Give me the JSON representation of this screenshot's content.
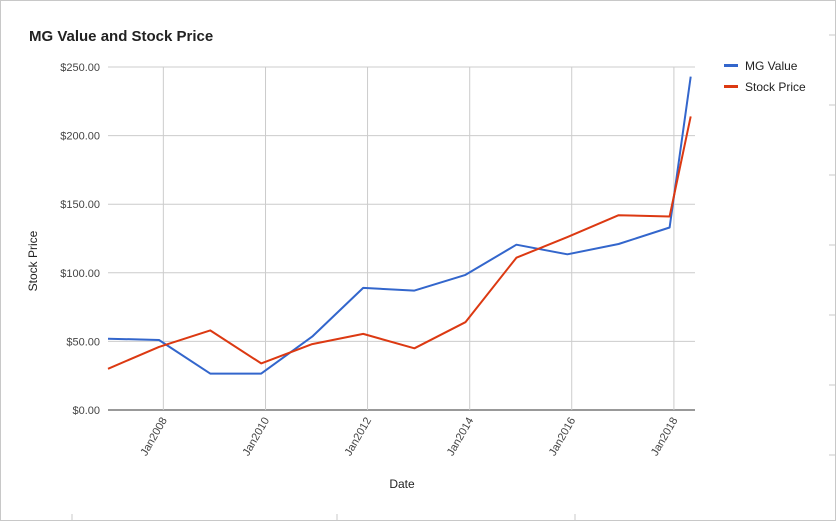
{
  "chart_data": {
    "type": "line",
    "title": "MG Value and Stock Price",
    "xlabel": "Date",
    "ylabel": "Stock Price",
    "ylim": [
      0,
      250
    ],
    "xlim": [
      "2006-12-01",
      "2018-06-01"
    ],
    "y_ticks": [
      "$0.00",
      "$50.00",
      "$100.00",
      "$150.00",
      "$200.00",
      "$250.00"
    ],
    "y_tick_values": [
      0,
      50,
      100,
      150,
      200,
      250
    ],
    "x_ticks": [
      "Jan2008",
      "Jan2010",
      "Jan2012",
      "Jan2014",
      "Jan2016",
      "Jan2018"
    ],
    "x_tick_dates": [
      "2008-01-01",
      "2010-01-01",
      "2012-01-01",
      "2014-01-01",
      "2016-01-01",
      "2018-01-01"
    ],
    "grid": true,
    "legend_position": "right",
    "series": [
      {
        "name": "MG Value",
        "color": "#3366cc",
        "x": [
          "2006-12-01",
          "2007-12-01",
          "2008-12-01",
          "2009-12-01",
          "2010-12-01",
          "2011-12-01",
          "2012-12-01",
          "2013-12-01",
          "2014-12-01",
          "2015-12-01",
          "2016-12-01",
          "2017-12-01",
          "2018-05-01"
        ],
        "values": [
          52,
          51,
          26.5,
          26.5,
          53.5,
          89,
          87,
          98.5,
          120.5,
          113.5,
          121,
          133,
          243
        ]
      },
      {
        "name": "Stock Price",
        "color": "#dc3912",
        "x": [
          "2006-12-01",
          "2007-12-01",
          "2008-12-01",
          "2009-12-01",
          "2010-12-01",
          "2011-12-01",
          "2012-12-01",
          "2013-12-01",
          "2014-12-01",
          "2015-12-01",
          "2016-12-01",
          "2017-12-01",
          "2018-05-01"
        ],
        "values": [
          30,
          46,
          58,
          34,
          48,
          55.5,
          45,
          64,
          111,
          126,
          142,
          141,
          214
        ]
      }
    ]
  }
}
